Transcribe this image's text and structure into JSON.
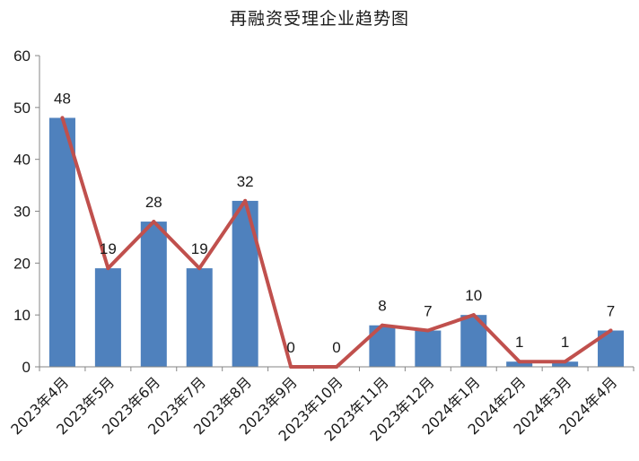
{
  "chart_data": {
    "type": "bar",
    "title": "再融资受理企业趋势图",
    "xlabel": "",
    "ylabel": "",
    "categories": [
      "2023年4月",
      "2023年5月",
      "2023年6月",
      "2023年7月",
      "2023年8月",
      "2023年9月",
      "2023年10月",
      "2023年11月",
      "2023年12月",
      "2024年1月",
      "2024年2月",
      "2024年3月",
      "2024年4月"
    ],
    "series": [
      {
        "type": "bar",
        "values": [
          48,
          19,
          28,
          19,
          32,
          0,
          0,
          8,
          7,
          10,
          1,
          1,
          7
        ],
        "color": "#4f81bd"
      },
      {
        "type": "line",
        "values": [
          48,
          19,
          28,
          19,
          32,
          0,
          0,
          8,
          7,
          10,
          1,
          1,
          7
        ],
        "color": "#c0504d"
      }
    ],
    "data_labels": [
      "48",
      "19",
      "28",
      "19",
      "32",
      "0",
      "0",
      "8",
      "7",
      "10",
      "1",
      "1",
      "7"
    ],
    "yticks": [
      "0",
      "10",
      "20",
      "30",
      "40",
      "50",
      "60"
    ],
    "ylim": [
      0,
      60
    ],
    "grid": false,
    "legend": "none"
  }
}
